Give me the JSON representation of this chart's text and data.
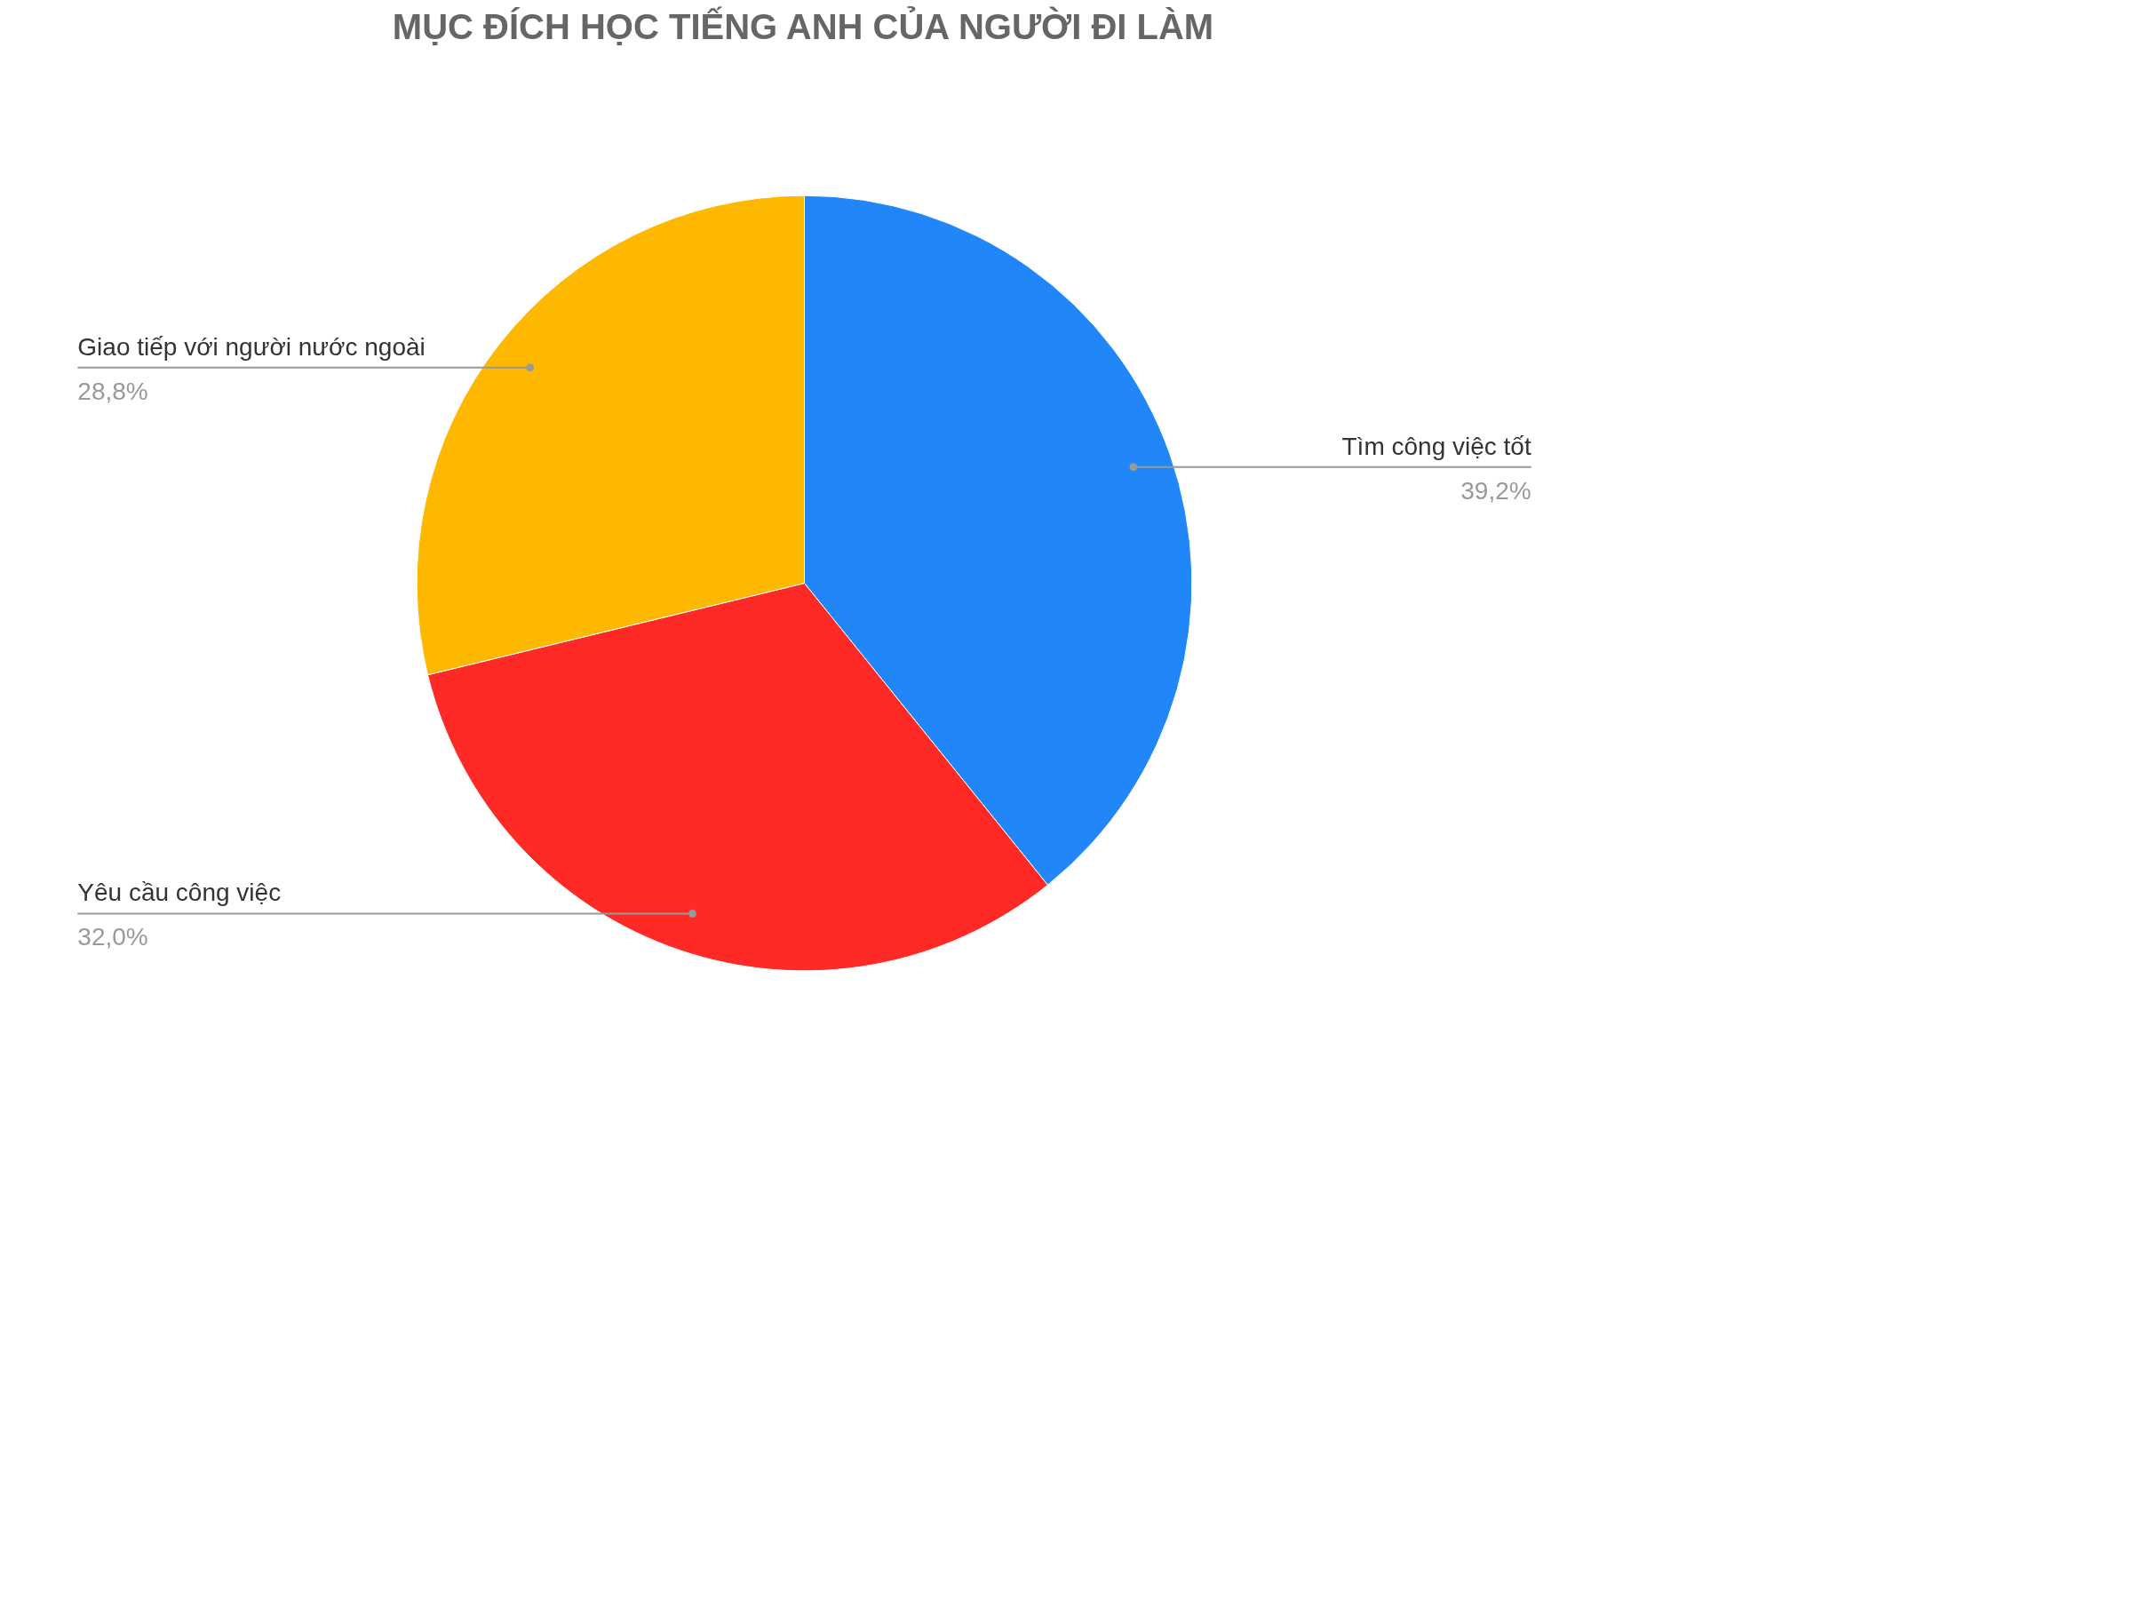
{
  "chart_data": {
    "type": "pie",
    "title": "MỤC ĐÍCH HỌC TIẾNG ANH CỦA NGƯỜI ĐI LÀM",
    "categories": [
      "Tìm công việc tốt",
      "Yêu cầu công việc",
      "Giao tiếp với người nước ngoài"
    ],
    "values": [
      39.2,
      32.0,
      28.8
    ],
    "value_labels": [
      "39,2%",
      "32,0%",
      "28,8%"
    ],
    "colors": [
      "#2186f8",
      "#ff2a26",
      "#ffb800"
    ],
    "legend": false
  }
}
